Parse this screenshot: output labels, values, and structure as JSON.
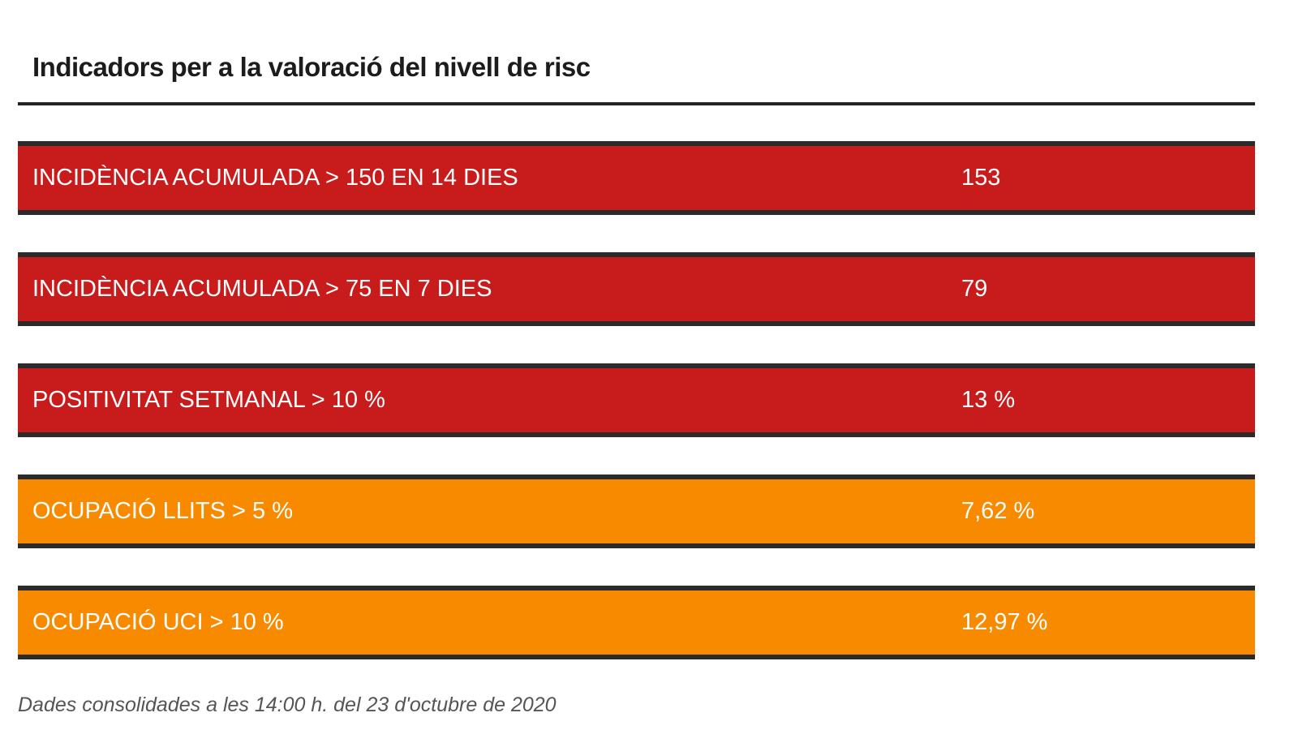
{
  "title": "Indicadors per a la valoració del nivell de risc",
  "colors": {
    "red": "#c81c1c",
    "orange": "#f88a00",
    "border": "#2b2b2b"
  },
  "indicators": [
    {
      "label": "INCIDÈNCIA ACUMULADA > 150 EN 14 DIES",
      "value": "153",
      "status": "red"
    },
    {
      "label": "INCIDÈNCIA ACUMULADA > 75 EN 7 DIES",
      "value": "79",
      "status": "red"
    },
    {
      "label": "POSITIVITAT SETMANAL > 10 %",
      "value": "13 %",
      "status": "red"
    },
    {
      "label": "OCUPACIÓ LLITS > 5 %",
      "value": "7,62 %",
      "status": "orange"
    },
    {
      "label": "OCUPACIÓ UCI > 10 %",
      "value": "12,97 %",
      "status": "orange"
    }
  ],
  "footer": "Dades consolidades a les 14:00 h. del 23 d'octubre de 2020"
}
